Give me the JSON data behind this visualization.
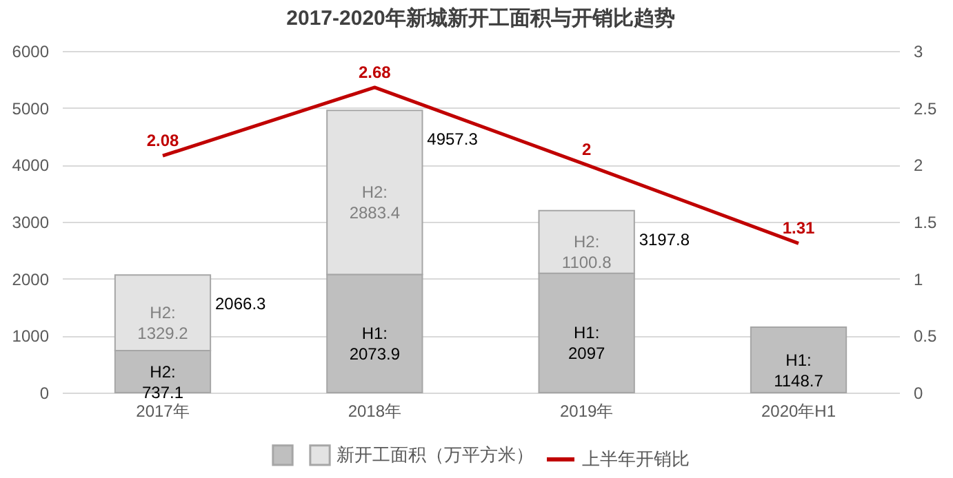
{
  "chart_data": {
    "type": "bar",
    "title": "2017-2020年新城新开工面积与开销比趋势",
    "categories": [
      "2017年",
      "2018年",
      "2019年",
      "2020年H1"
    ],
    "stacked": true,
    "series": [
      {
        "type": "bar",
        "color": "#bfbfbf",
        "values": [
          737.1,
          2073.9,
          2097,
          1148.7
        ],
        "value_labels": [
          "H2:\n737.1",
          "H1:\n2073.9",
          "H1:\n2097",
          "H1:\n1148.7"
        ]
      },
      {
        "type": "bar",
        "name": "新开工面积（万平方米）",
        "color": "#e3e3e3",
        "values": [
          1329.2,
          2883.4,
          1100.8,
          null
        ],
        "value_labels": [
          "H2:\n1329.2",
          "H2:\n2883.4",
          "H2:\n1100.8",
          null
        ]
      },
      {
        "type": "line",
        "name": "上半年开销比",
        "color": "#c00000",
        "axis": "y2",
        "values": [
          2.08,
          2.68,
          2,
          1.31
        ],
        "value_labels": [
          "2.08",
          "2.68",
          "2",
          "1.31"
        ]
      }
    ],
    "totals": [
      "2066.3",
      "4957.3",
      "3197.8",
      null
    ],
    "ylim": [
      0,
      6000
    ],
    "yticks": [
      0,
      1000,
      2000,
      3000,
      4000,
      5000,
      6000
    ],
    "y2lim": [
      0,
      3
    ],
    "y2ticks": [
      0,
      0.5,
      1,
      1.5,
      2,
      2.5,
      3
    ],
    "grid": "y",
    "legend": "bottom"
  }
}
